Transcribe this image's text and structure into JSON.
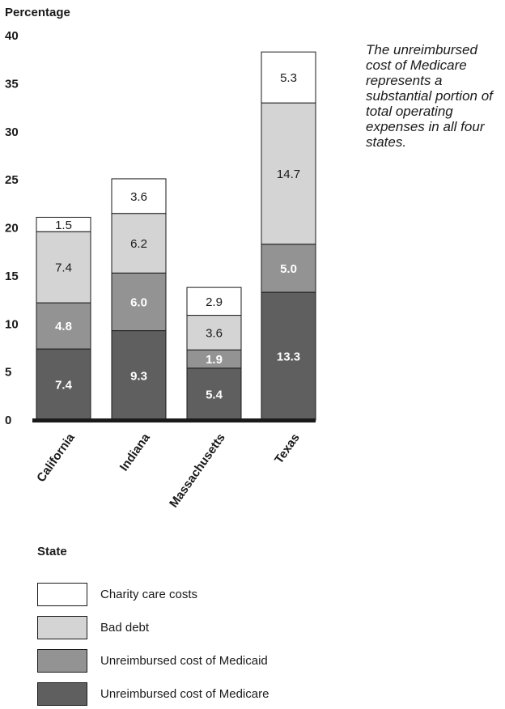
{
  "chart_data": {
    "type": "bar",
    "stacked": true,
    "ylabel": "Percentage",
    "xlabel": "State",
    "ylim": [
      0,
      40
    ],
    "yticks": [
      0,
      5,
      10,
      15,
      20,
      25,
      30,
      35,
      40
    ],
    "grid": false,
    "legend_position": "bottom-left",
    "categories": [
      "California",
      "Indiana",
      "Massachusetts",
      "Texas"
    ],
    "series": [
      {
        "name": "Unreimbursed cost of Medicare",
        "values": [
          7.4,
          9.3,
          5.4,
          13.3
        ],
        "color": "#5f5f5f",
        "label_color": "#ffffff",
        "bold": true
      },
      {
        "name": "Unreimbursed cost of Medicaid",
        "values": [
          4.8,
          6.0,
          1.9,
          5.0
        ],
        "color": "#939393",
        "label_color": "#ffffff",
        "bold": true
      },
      {
        "name": "Bad debt",
        "values": [
          7.4,
          6.2,
          3.6,
          14.7
        ],
        "color": "#d4d4d4",
        "label_color": "#1a1a1a",
        "bold": false
      },
      {
        "name": "Charity care costs",
        "values": [
          1.5,
          3.6,
          2.9,
          5.3
        ],
        "color": "#ffffff",
        "label_color": "#1a1a1a",
        "bold": false
      }
    ],
    "legend_order": [
      3,
      2,
      1,
      0
    ],
    "annotation": "The unreimbursed cost of Medicare represents a substantial portion of total operating expenses in all four states."
  }
}
